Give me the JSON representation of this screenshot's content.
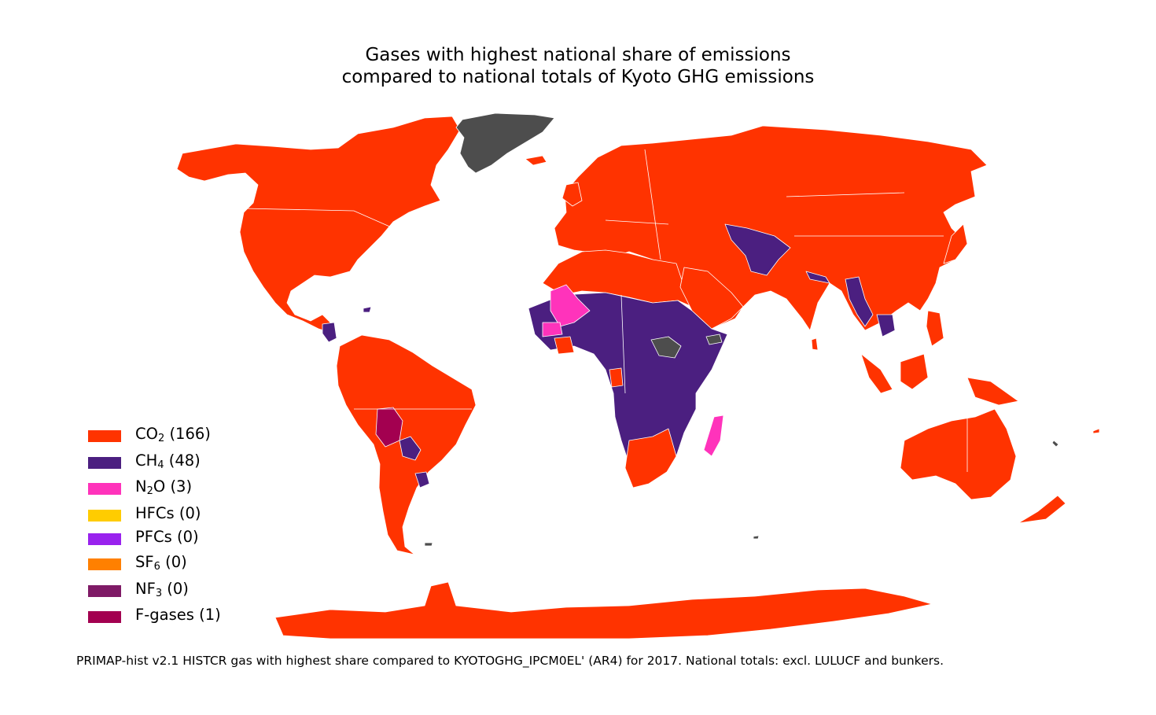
{
  "title": {
    "line1": "Gases with highest national share of emissions",
    "line2": "compared to national totals of Kyoto GHG emissions"
  },
  "legend": [
    {
      "base": "CO",
      "sub": "2",
      "rest": "",
      "count": "(166)",
      "color": "#ff3300"
    },
    {
      "base": "CH",
      "sub": "4",
      "rest": "",
      "count": "(48)",
      "color": "#4b1f80"
    },
    {
      "base": "N",
      "sub": "2",
      "rest": "O",
      "count": "(3)",
      "color": "#ff33bb"
    },
    {
      "base": "HFCs",
      "sub": "",
      "rest": "",
      "count": "(0)",
      "color": "#ffcc00"
    },
    {
      "base": "PFCs",
      "sub": "",
      "rest": "",
      "count": "(0)",
      "color": "#9922ee"
    },
    {
      "base": "SF",
      "sub": "6",
      "rest": "",
      "count": "(0)",
      "color": "#ff8000"
    },
    {
      "base": "NF",
      "sub": "3",
      "rest": "",
      "count": "(0)",
      "color": "#7f1a66"
    },
    {
      "base": "F-gases",
      "sub": "",
      "rest": "",
      "count": "(1)",
      "color": "#a30050"
    }
  ],
  "no_data_color": "#4d4d4d",
  "caption": "PRIMAP-hist v2.1 HISTCR gas with highest share compared to KYOTOGHG_IPCM0EL' (AR4) for 2017. National totals: excl. LULUCF and bunkers."
}
